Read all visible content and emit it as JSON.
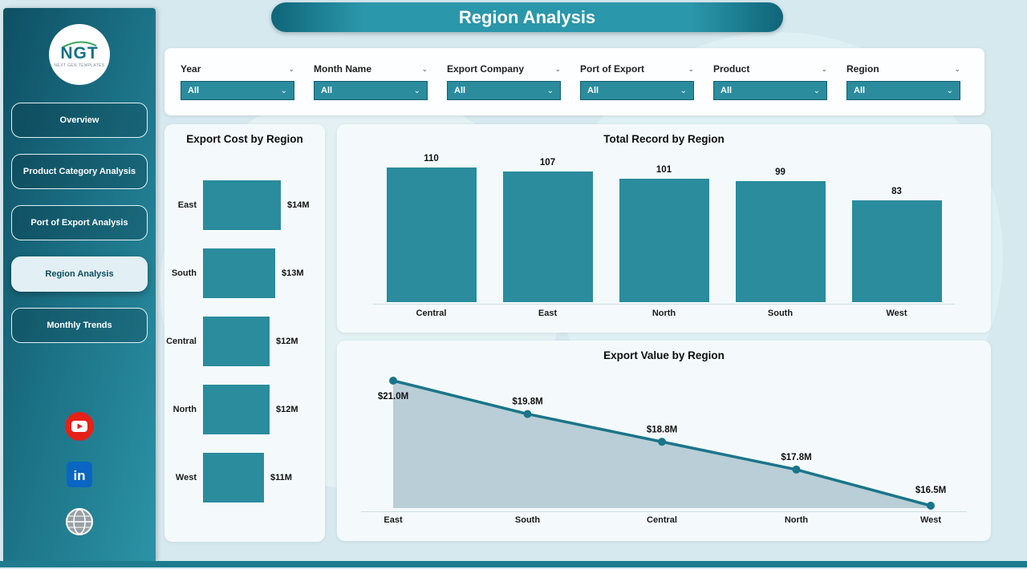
{
  "header": {
    "title": "Region Analysis"
  },
  "sidebar": {
    "logo": {
      "text": "NGT",
      "subtext": "NEXT GEN TEMPLATES"
    },
    "items": [
      {
        "label": "Overview",
        "active": false
      },
      {
        "label": "Product Category Analysis",
        "active": false
      },
      {
        "label": "Port of Export Analysis",
        "active": false
      },
      {
        "label": "Region Analysis",
        "active": true
      },
      {
        "label": "Monthly Trends",
        "active": false
      }
    ],
    "social": [
      {
        "name": "youtube"
      },
      {
        "name": "linkedin"
      },
      {
        "name": "website"
      }
    ]
  },
  "filters": [
    {
      "label": "Year",
      "value": "All"
    },
    {
      "label": "Month Name",
      "value": "All"
    },
    {
      "label": "Export Company",
      "value": "All"
    },
    {
      "label": "Port of Export",
      "value": "All"
    },
    {
      "label": "Product",
      "value": "All"
    },
    {
      "label": "Region",
      "value": "All"
    }
  ],
  "colors": {
    "accent": "#2a8c9d",
    "accent_dark": "#14606f",
    "line": "#1a758a",
    "area_fill": "#b5cbd4",
    "sidebar_active_text": "#0b4d5e",
    "youtube_red": "#e62117",
    "linkedin_blue": "#0a66c2"
  },
  "chart_data": [
    {
      "type": "bar",
      "orientation": "horizontal",
      "title": "Export Cost by Region",
      "categories": [
        "East",
        "South",
        "Central",
        "North",
        "West"
      ],
      "values": [
        14,
        13,
        12,
        12,
        11
      ],
      "value_labels": [
        "$14M",
        "$13M",
        "$12M",
        "$12M",
        "$11M"
      ],
      "xlabel": "",
      "ylabel": "",
      "xlim": [
        0,
        14
      ]
    },
    {
      "type": "bar",
      "orientation": "vertical",
      "title": "Total Record by Region",
      "categories": [
        "Central",
        "East",
        "North",
        "South",
        "West"
      ],
      "values": [
        110,
        107,
        101,
        99,
        83
      ],
      "value_labels": [
        "110",
        "107",
        "101",
        "99",
        "83"
      ],
      "xlabel": "",
      "ylabel": "",
      "ylim": [
        0,
        110
      ]
    },
    {
      "type": "area",
      "title": "Export Value by Region",
      "categories": [
        "East",
        "South",
        "Central",
        "North",
        "West"
      ],
      "values": [
        21.0,
        19.8,
        18.8,
        17.8,
        16.5
      ],
      "value_labels": [
        "$21.0M",
        "$19.8M",
        "$18.8M",
        "$17.8M",
        "$16.5M"
      ],
      "xlabel": "",
      "ylabel": "",
      "ylim": [
        16,
        21.5
      ]
    }
  ]
}
